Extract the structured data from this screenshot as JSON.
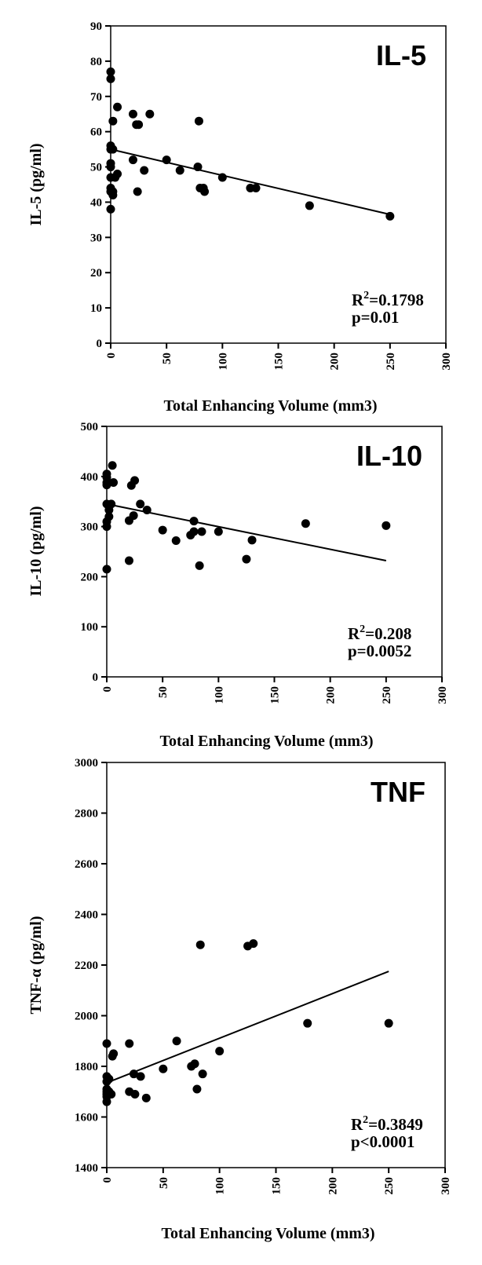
{
  "chart_data": [
    {
      "type": "scatter",
      "title": "IL-5",
      "xlabel": "Total Enhancing Volume (mm3)",
      "ylabel": "IL-5 (pg/ml)",
      "xlim": [
        0,
        300
      ],
      "ylim": [
        0,
        90
      ],
      "xticks": [
        "0",
        "50",
        "100",
        "150",
        "200",
        "250",
        "300"
      ],
      "yticks": [
        "0",
        "10",
        "20",
        "30",
        "40",
        "50",
        "60",
        "70",
        "80",
        "90"
      ],
      "r2_text": "=0.1798",
      "p_text": "p=0.01",
      "fit": [
        [
          0,
          55
        ],
        [
          250,
          36.5
        ]
      ],
      "points": [
        [
          0,
          77
        ],
        [
          0,
          75
        ],
        [
          0,
          56
        ],
        [
          0,
          55
        ],
        [
          0,
          51
        ],
        [
          0,
          50
        ],
        [
          0,
          47
        ],
        [
          0,
          44
        ],
        [
          0,
          43
        ],
        [
          0,
          38
        ],
        [
          2,
          63
        ],
        [
          2,
          55
        ],
        [
          2,
          43
        ],
        [
          2,
          42
        ],
        [
          4,
          47
        ],
        [
          6,
          67
        ],
        [
          6,
          48
        ],
        [
          20,
          65
        ],
        [
          20,
          52
        ],
        [
          23,
          62
        ],
        [
          25,
          62
        ],
        [
          24,
          43
        ],
        [
          30,
          49
        ],
        [
          35,
          65
        ],
        [
          50,
          52
        ],
        [
          62,
          49
        ],
        [
          78,
          50
        ],
        [
          79,
          63
        ],
        [
          80,
          44
        ],
        [
          83,
          44
        ],
        [
          84,
          43
        ],
        [
          100,
          47
        ],
        [
          125,
          44
        ],
        [
          130,
          44
        ],
        [
          178,
          39
        ],
        [
          250,
          36
        ]
      ]
    },
    {
      "type": "scatter",
      "title": "IL-10",
      "xlabel": "Total Enhancing Volume (mm3)",
      "ylabel": "IL-10 (pg/ml)",
      "xlim": [
        0,
        300
      ],
      "ylim": [
        0,
        500
      ],
      "xticks": [
        "0",
        "50",
        "100",
        "150",
        "200",
        "250",
        "300"
      ],
      "yticks": [
        "0",
        "100",
        "200",
        "300",
        "400",
        "500"
      ],
      "r2_text": "=0.208",
      "p_text": "p=0.0052",
      "fit": [
        [
          0,
          345
        ],
        [
          250,
          232
        ]
      ],
      "points": [
        [
          0,
          405
        ],
        [
          0,
          398
        ],
        [
          0,
          388
        ],
        [
          0,
          383
        ],
        [
          0,
          345
        ],
        [
          0,
          310
        ],
        [
          0,
          300
        ],
        [
          0,
          215
        ],
        [
          2,
          333
        ],
        [
          2,
          320
        ],
        [
          4,
          345
        ],
        [
          5,
          422
        ],
        [
          6,
          388
        ],
        [
          20,
          232
        ],
        [
          20,
          312
        ],
        [
          22,
          382
        ],
        [
          24,
          322
        ],
        [
          25,
          392
        ],
        [
          30,
          345
        ],
        [
          36,
          333
        ],
        [
          50,
          293
        ],
        [
          62,
          272
        ],
        [
          75,
          283
        ],
        [
          78,
          290
        ],
        [
          78,
          311
        ],
        [
          83,
          222
        ],
        [
          85,
          290
        ],
        [
          100,
          290
        ],
        [
          125,
          235
        ],
        [
          130,
          273
        ],
        [
          178,
          306
        ],
        [
          250,
          302
        ]
      ]
    },
    {
      "type": "scatter",
      "title": "TNF",
      "xlabel": "Total Enhancing Volume (mm3)",
      "ylabel": "TNF-α (pg/ml)",
      "xlim": [
        0,
        300
      ],
      "ylim": [
        1400,
        3000
      ],
      "xticks": [
        "0",
        "50",
        "100",
        "150",
        "200",
        "250",
        "300"
      ],
      "yticks": [
        "1400",
        "1600",
        "1800",
        "2000",
        "2200",
        "2400",
        "2600",
        "2800",
        "3000"
      ],
      "r2_text": "=0.3849",
      "p_text": "p<0.0001",
      "fit": [
        [
          0,
          1735
        ],
        [
          250,
          2175
        ]
      ],
      "points": [
        [
          0,
          1890
        ],
        [
          0,
          1760
        ],
        [
          0,
          1740
        ],
        [
          0,
          1710
        ],
        [
          0,
          1700
        ],
        [
          0,
          1690
        ],
        [
          0,
          1680
        ],
        [
          0,
          1660
        ],
        [
          2,
          1750
        ],
        [
          2,
          1700
        ],
        [
          4,
          1690
        ],
        [
          5,
          1840
        ],
        [
          6,
          1850
        ],
        [
          20,
          1890
        ],
        [
          20,
          1700
        ],
        [
          24,
          1770
        ],
        [
          25,
          1690
        ],
        [
          30,
          1760
        ],
        [
          35,
          1675
        ],
        [
          50,
          1790
        ],
        [
          62,
          1900
        ],
        [
          75,
          1800
        ],
        [
          78,
          1810
        ],
        [
          80,
          1710
        ],
        [
          83,
          2280
        ],
        [
          85,
          1770
        ],
        [
          100,
          1860
        ],
        [
          125,
          2275
        ],
        [
          130,
          2285
        ],
        [
          178,
          1970
        ],
        [
          250,
          1970
        ]
      ]
    }
  ]
}
